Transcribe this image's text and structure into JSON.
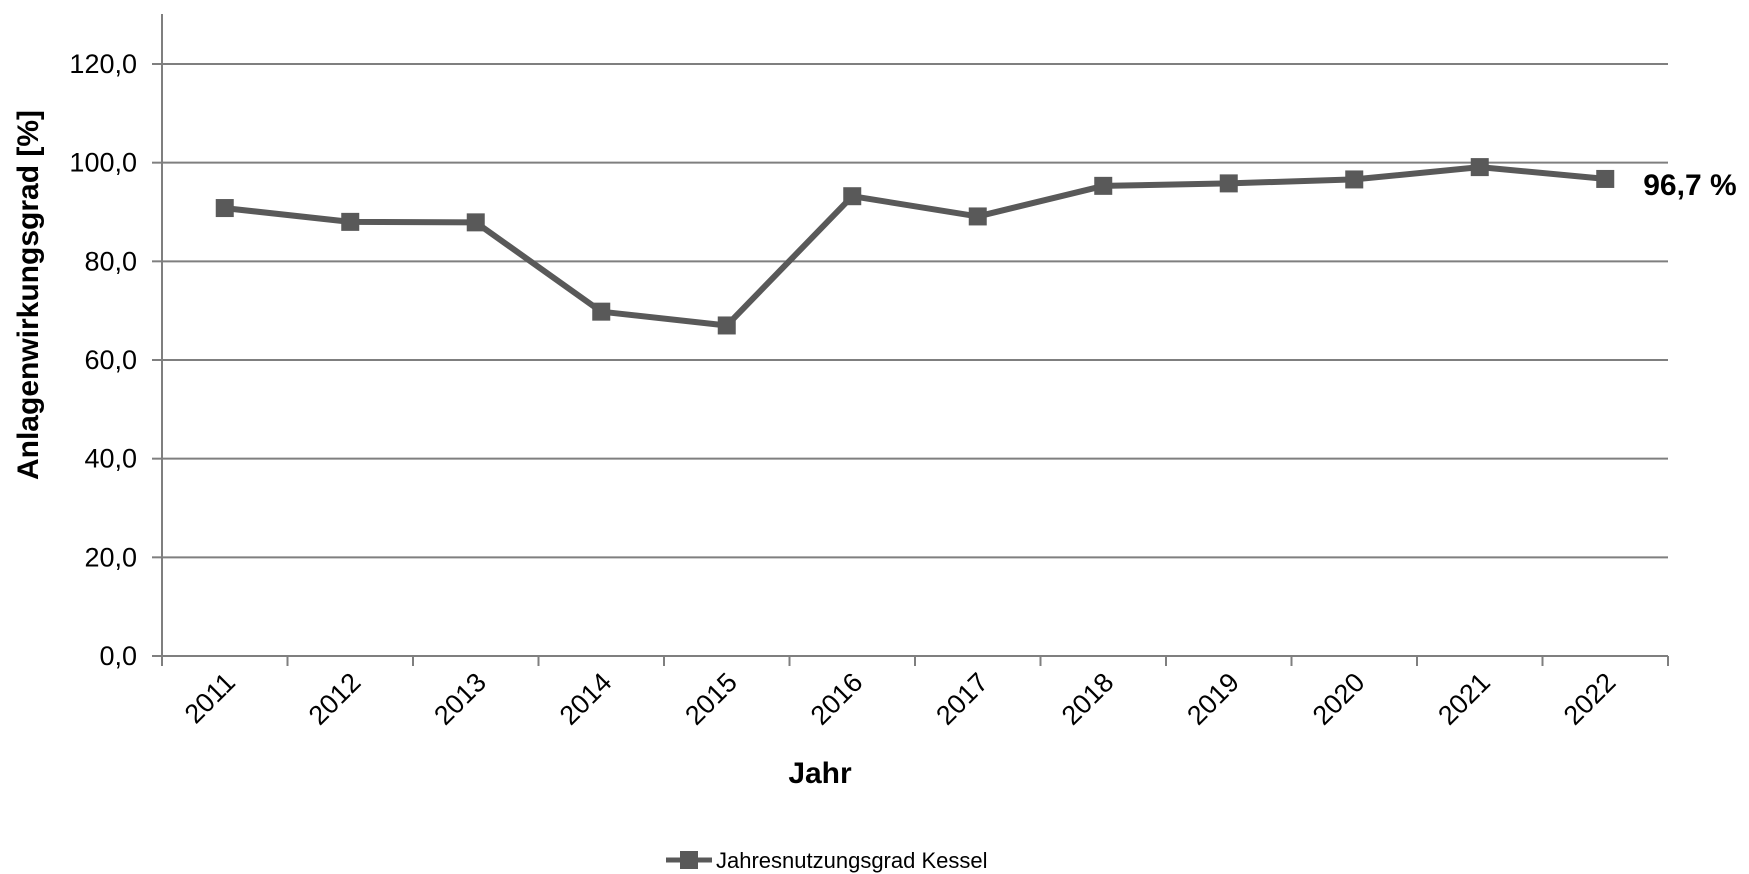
{
  "chart_data": {
    "type": "line",
    "title": "",
    "xlabel": "Jahr",
    "ylabel": "Anlagenwirkungsgrad [%]",
    "categories": [
      "2011",
      "2012",
      "2013",
      "2014",
      "2015",
      "2016",
      "2017",
      "2018",
      "2019",
      "2020",
      "2021",
      "2022"
    ],
    "series": [
      {
        "name": "Jahresnutzungsgrad Kessel",
        "values": [
          90.8,
          88.0,
          87.9,
          69.8,
          67.0,
          93.2,
          89.1,
          95.3,
          95.8,
          96.6,
          99.1,
          96.7
        ],
        "color": "#595959"
      }
    ],
    "ylim": [
      0,
      120
    ],
    "yticks": [
      "0,0",
      "20,0",
      "40,0",
      "60,0",
      "80,0",
      "100,0",
      "120,0"
    ],
    "ytick_values": [
      0,
      20,
      40,
      60,
      80,
      100,
      120
    ],
    "grid": "horizontal",
    "legend_position": "bottom",
    "annotations": [
      {
        "category": "2022",
        "text": "96,7 %"
      }
    ],
    "colors": {
      "line": "#595959",
      "grid": "#7f7f7f",
      "axis": "#7f7f7f"
    }
  }
}
